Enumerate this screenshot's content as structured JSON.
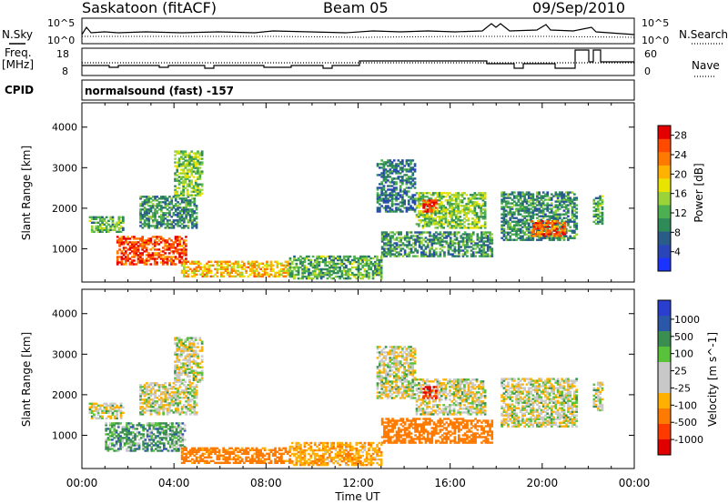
{
  "header": {
    "station": "Saskatoon (fitACF)",
    "beam": "Beam 05",
    "date": "09/Sep/2010"
  },
  "top_panels": {
    "nsky_label": "N.Sky",
    "nsky_ticks": [
      "10^5",
      "10^0"
    ],
    "nsearch_label": "N.Search",
    "nsearch_ticks": [
      "10^5",
      "10^0"
    ],
    "freq_label_1": "Freq.",
    "freq_label_2": "[MHz]",
    "freq_ticks": [
      "18",
      "8"
    ],
    "nave_label": "Nave",
    "nave_ticks": [
      "60",
      "0"
    ],
    "cpid_label": "CPID",
    "cpid_text": "normalsound (fast) -157"
  },
  "x_axis": {
    "label": "Time UT",
    "ticks": [
      "00:00",
      "04:00",
      "08:00",
      "12:00",
      "16:00",
      "20:00",
      "00:00"
    ]
  },
  "colors": {
    "power": [
      "#1a33ff",
      "#2a45b8",
      "#2a5c8a",
      "#2e8b57",
      "#4caf50",
      "#9ad23a",
      "#e9e300",
      "#ffb300",
      "#ff7a00",
      "#ff4a00",
      "#e40000"
    ],
    "velocity": [
      "#2a3fd0",
      "#2a57a8",
      "#3a8e50",
      "#58c23a",
      "#c8c8c8",
      "#c8c8c8",
      "#ffb000",
      "#ff7a00",
      "#ff3a00",
      "#e00000"
    ]
  },
  "chart_data": [
    {
      "type": "heatmap",
      "name": "power",
      "ylabel": "Slant Range [km]",
      "xlabel": "Time UT",
      "x_unit": "hours UT",
      "xlim": [
        0,
        24
      ],
      "ylim": [
        180,
        4600
      ],
      "yticks": [
        "1000",
        "2000",
        "3000",
        "4000"
      ],
      "colorbar_label": "Power [dB]",
      "colorbar_ticks": [
        "4",
        "8",
        "12",
        "16",
        "20",
        "24",
        "28"
      ],
      "colorbar_range": [
        0,
        30
      ],
      "echo_regions": [
        {
          "t": [
            0.3,
            1.8
          ],
          "r": [
            1400,
            1800
          ],
          "level": 12
        },
        {
          "t": [
            1.5,
            4.5
          ],
          "r": [
            600,
            1300
          ],
          "level": 26
        },
        {
          "t": [
            2.5,
            5.0
          ],
          "r": [
            1500,
            2300
          ],
          "level": 10
        },
        {
          "t": [
            4.0,
            5.2
          ],
          "r": [
            2300,
            3400
          ],
          "level": 14
        },
        {
          "t": [
            4.3,
            9.0
          ],
          "r": [
            300,
            700
          ],
          "level": 20
        },
        {
          "t": [
            9.0,
            13.0
          ],
          "r": [
            250,
            800
          ],
          "level": 12
        },
        {
          "t": [
            12.8,
            14.5
          ],
          "r": [
            1900,
            3200
          ],
          "level": 8
        },
        {
          "t": [
            13.0,
            17.8
          ],
          "r": [
            800,
            1400
          ],
          "level": 10
        },
        {
          "t": [
            14.5,
            17.5
          ],
          "r": [
            1500,
            2400
          ],
          "level": 14
        },
        {
          "t": [
            14.8,
            15.4
          ],
          "r": [
            1900,
            2200
          ],
          "level": 26
        },
        {
          "t": [
            18.2,
            21.5
          ],
          "r": [
            1200,
            2400
          ],
          "level": 10
        },
        {
          "t": [
            19.5,
            21.0
          ],
          "r": [
            1300,
            1700
          ],
          "level": 24
        },
        {
          "t": [
            22.2,
            22.6
          ],
          "r": [
            1600,
            2300
          ],
          "level": 12
        }
      ]
    },
    {
      "type": "heatmap",
      "name": "velocity",
      "ylabel": "Slant Range [km]",
      "xlabel": "Time UT",
      "x_unit": "hours UT",
      "xlim": [
        0,
        24
      ],
      "ylim": [
        180,
        4600
      ],
      "yticks": [
        "1000",
        "2000",
        "3000",
        "4000"
      ],
      "colorbar_label": "Velocity [m s^-1]",
      "colorbar_ticks": [
        "1000",
        "500",
        "100",
        "25",
        "-25",
        "-100",
        "-500",
        "-1000"
      ],
      "echo_regions": [
        {
          "t": [
            0.3,
            1.8
          ],
          "r": [
            1400,
            1800
          ],
          "level": 0
        },
        {
          "t": [
            1.0,
            4.5
          ],
          "r": [
            600,
            1300
          ],
          "level": 60
        },
        {
          "t": [
            2.5,
            5.0
          ],
          "r": [
            1500,
            2300
          ],
          "level": 0
        },
        {
          "t": [
            4.0,
            5.2
          ],
          "r": [
            2300,
            3400
          ],
          "level": 0
        },
        {
          "t": [
            4.3,
            9.0
          ],
          "r": [
            300,
            700
          ],
          "level": -150
        },
        {
          "t": [
            9.0,
            13.0
          ],
          "r": [
            250,
            800
          ],
          "level": -80
        },
        {
          "t": [
            12.8,
            14.5
          ],
          "r": [
            1900,
            3200
          ],
          "level": 0
        },
        {
          "t": [
            13.0,
            17.8
          ],
          "r": [
            800,
            1400
          ],
          "level": -200
        },
        {
          "t": [
            14.5,
            17.5
          ],
          "r": [
            1500,
            2400
          ],
          "level": 0
        },
        {
          "t": [
            14.8,
            15.4
          ],
          "r": [
            1900,
            2200
          ],
          "level": -800
        },
        {
          "t": [
            18.2,
            21.5
          ],
          "r": [
            1200,
            2400
          ],
          "level": 0
        },
        {
          "t": [
            22.2,
            22.6
          ],
          "r": [
            1600,
            2300
          ],
          "level": 0
        }
      ]
    }
  ]
}
